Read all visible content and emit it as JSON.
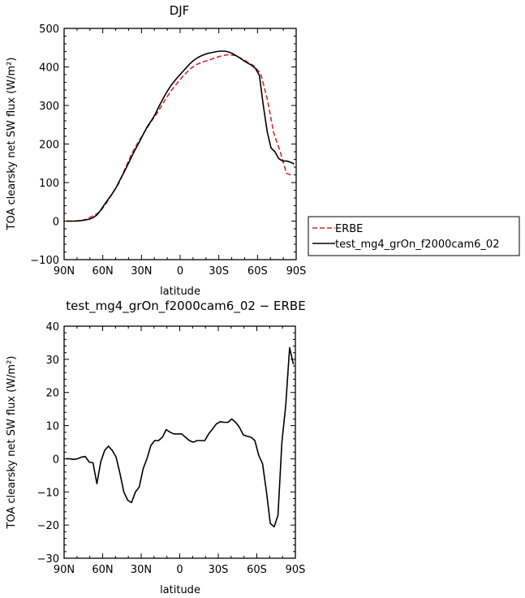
{
  "chart_data": [
    {
      "type": "line",
      "title": "DJF",
      "xlabel": "latitude",
      "ylabel": "TOA clearsky net SW flux (W/m²)",
      "xlim": [
        -90,
        90
      ],
      "ylim": [
        -100,
        500
      ],
      "x_ticks": [
        -90,
        -60,
        -30,
        0,
        30,
        60,
        90
      ],
      "x_tick_labels": [
        "90N",
        "60N",
        "30N",
        "0",
        "30S",
        "60S",
        "90S"
      ],
      "y_ticks": [
        -100,
        0,
        100,
        200,
        300,
        400,
        500
      ],
      "y_tick_labels": [
        "−100",
        "0",
        "100",
        "200",
        "300",
        "400",
        "500"
      ],
      "legend": "outside-right",
      "series": [
        {
          "name": "ERBE",
          "color": "#d62728",
          "style": "dashed",
          "x": [
            -87.5,
            -82.5,
            -77.5,
            -72.5,
            -67.5,
            -62.5,
            -57.5,
            -52.5,
            -47.5,
            -42.5,
            -37.5,
            -32.5,
            -27.5,
            -22.5,
            -17.5,
            -12.5,
            -7.5,
            -2.5,
            2.5,
            7.5,
            12.5,
            17.5,
            22.5,
            27.5,
            32.5,
            37.5,
            42.5,
            47.5,
            52.5,
            57.5,
            62.5,
            67.5,
            72.5,
            77.5,
            82.5,
            87.5
          ],
          "y": [
            0,
            0,
            1,
            5,
            14,
            23,
            45,
            72,
            98,
            138,
            175,
            205,
            232,
            258,
            282,
            310,
            336,
            357,
            377,
            394,
            406,
            413,
            418,
            424,
            429,
            432,
            430,
            422,
            412,
            402,
            382,
            318,
            230,
            182,
            124,
            118
          ]
        },
        {
          "name": "test_mg4_grOn_f2000cam6_02",
          "color": "#000000",
          "style": "solid",
          "x": [
            -88.5,
            -85.5,
            -82.5,
            -79.5,
            -76.5,
            -73.5,
            -70.5,
            -67.5,
            -64.5,
            -61.5,
            -58.5,
            -55.5,
            -52.5,
            -49.5,
            -46.5,
            -43.5,
            -40.5,
            -37.5,
            -34.5,
            -31.5,
            -28.5,
            -25.5,
            -22.5,
            -19.5,
            -16.5,
            -13.5,
            -10.5,
            -7.5,
            -4.5,
            -1.5,
            1.5,
            4.5,
            7.5,
            10.5,
            13.5,
            16.5,
            19.5,
            22.5,
            25.5,
            28.5,
            31.5,
            34.5,
            37.5,
            40.5,
            43.5,
            46.5,
            49.5,
            52.5,
            55.5,
            58.5,
            61.5,
            64.5,
            67.5,
            70.5,
            73.5,
            76.5,
            79.5,
            82.5,
            85.5,
            88.5
          ],
          "y": [
            0,
            0,
            0,
            0.5,
            1.5,
            3,
            5,
            9,
            16,
            29,
            44,
            58,
            72,
            88,
            108,
            127,
            147,
            168,
            188,
            206,
            226,
            245,
            260,
            276,
            297,
            316,
            334,
            350,
            363,
            375,
            386,
            397,
            408,
            417,
            424,
            429,
            433,
            436,
            438,
            440,
            441,
            441,
            439,
            435,
            429,
            423,
            416,
            410,
            404,
            396,
            378,
            300,
            232,
            190,
            180,
            162,
            156,
            156,
            153,
            148
          ]
        }
      ]
    },
    {
      "type": "line",
      "title": "test_mg4_grOn_f2000cam6_02 − ERBE",
      "xlabel": "latitude",
      "ylabel": "TOA clearsky net SW flux (W/m²)",
      "xlim": [
        -90,
        90
      ],
      "ylim": [
        -30,
        40
      ],
      "x_ticks": [
        -90,
        -60,
        -30,
        0,
        30,
        60,
        90
      ],
      "x_tick_labels": [
        "90N",
        "60N",
        "30N",
        "0",
        "30S",
        "60S",
        "90S"
      ],
      "y_ticks": [
        -30,
        -20,
        -10,
        0,
        10,
        20,
        30,
        40
      ],
      "y_tick_labels": [
        "−30",
        "−20",
        "−10",
        "0",
        "10",
        "20",
        "30",
        "40"
      ],
      "series": [
        {
          "color": "#000000",
          "style": "solid",
          "x": [
            -88.5,
            -85.5,
            -82.5,
            -79.5,
            -76.5,
            -73.5,
            -70.5,
            -67.5,
            -64.5,
            -61.5,
            -58.5,
            -55.5,
            -52.5,
            -49.5,
            -46.5,
            -43.5,
            -40.5,
            -37.5,
            -34.5,
            -31.5,
            -28.5,
            -25.5,
            -22.5,
            -19.5,
            -16.5,
            -13.5,
            -10.5,
            -7.5,
            -4.5,
            -1.5,
            1.5,
            4.5,
            7.5,
            10.5,
            13.5,
            16.5,
            19.5,
            22.5,
            25.5,
            28.5,
            31.5,
            34.5,
            37.5,
            40.5,
            43.5,
            46.5,
            49.5,
            52.5,
            55.5,
            58.5,
            61.5,
            64.5,
            67.5,
            70.5,
            73.5,
            76.5,
            79.5,
            82.5,
            85.5,
            88.5
          ],
          "y": [
            0,
            0,
            -0.2,
            0,
            0.5,
            0.7,
            -1,
            -1.2,
            -7.5,
            -1,
            2.5,
            3.8,
            2.5,
            0.5,
            -4.5,
            -10,
            -12.5,
            -13.2,
            -10,
            -8.5,
            -3,
            0,
            4,
            5.5,
            5.5,
            6.5,
            8.8,
            8,
            7.5,
            7.5,
            7.5,
            6.5,
            5.5,
            5,
            5.5,
            5.5,
            5.5,
            7.5,
            9,
            10.5,
            11.2,
            11,
            11,
            12,
            11,
            9.5,
            7.2,
            6.8,
            6.5,
            5.5,
            1,
            -1.5,
            -10,
            -19.5,
            -20.5,
            -17,
            5,
            16,
            33.5,
            28.5
          ]
        }
      ]
    }
  ]
}
